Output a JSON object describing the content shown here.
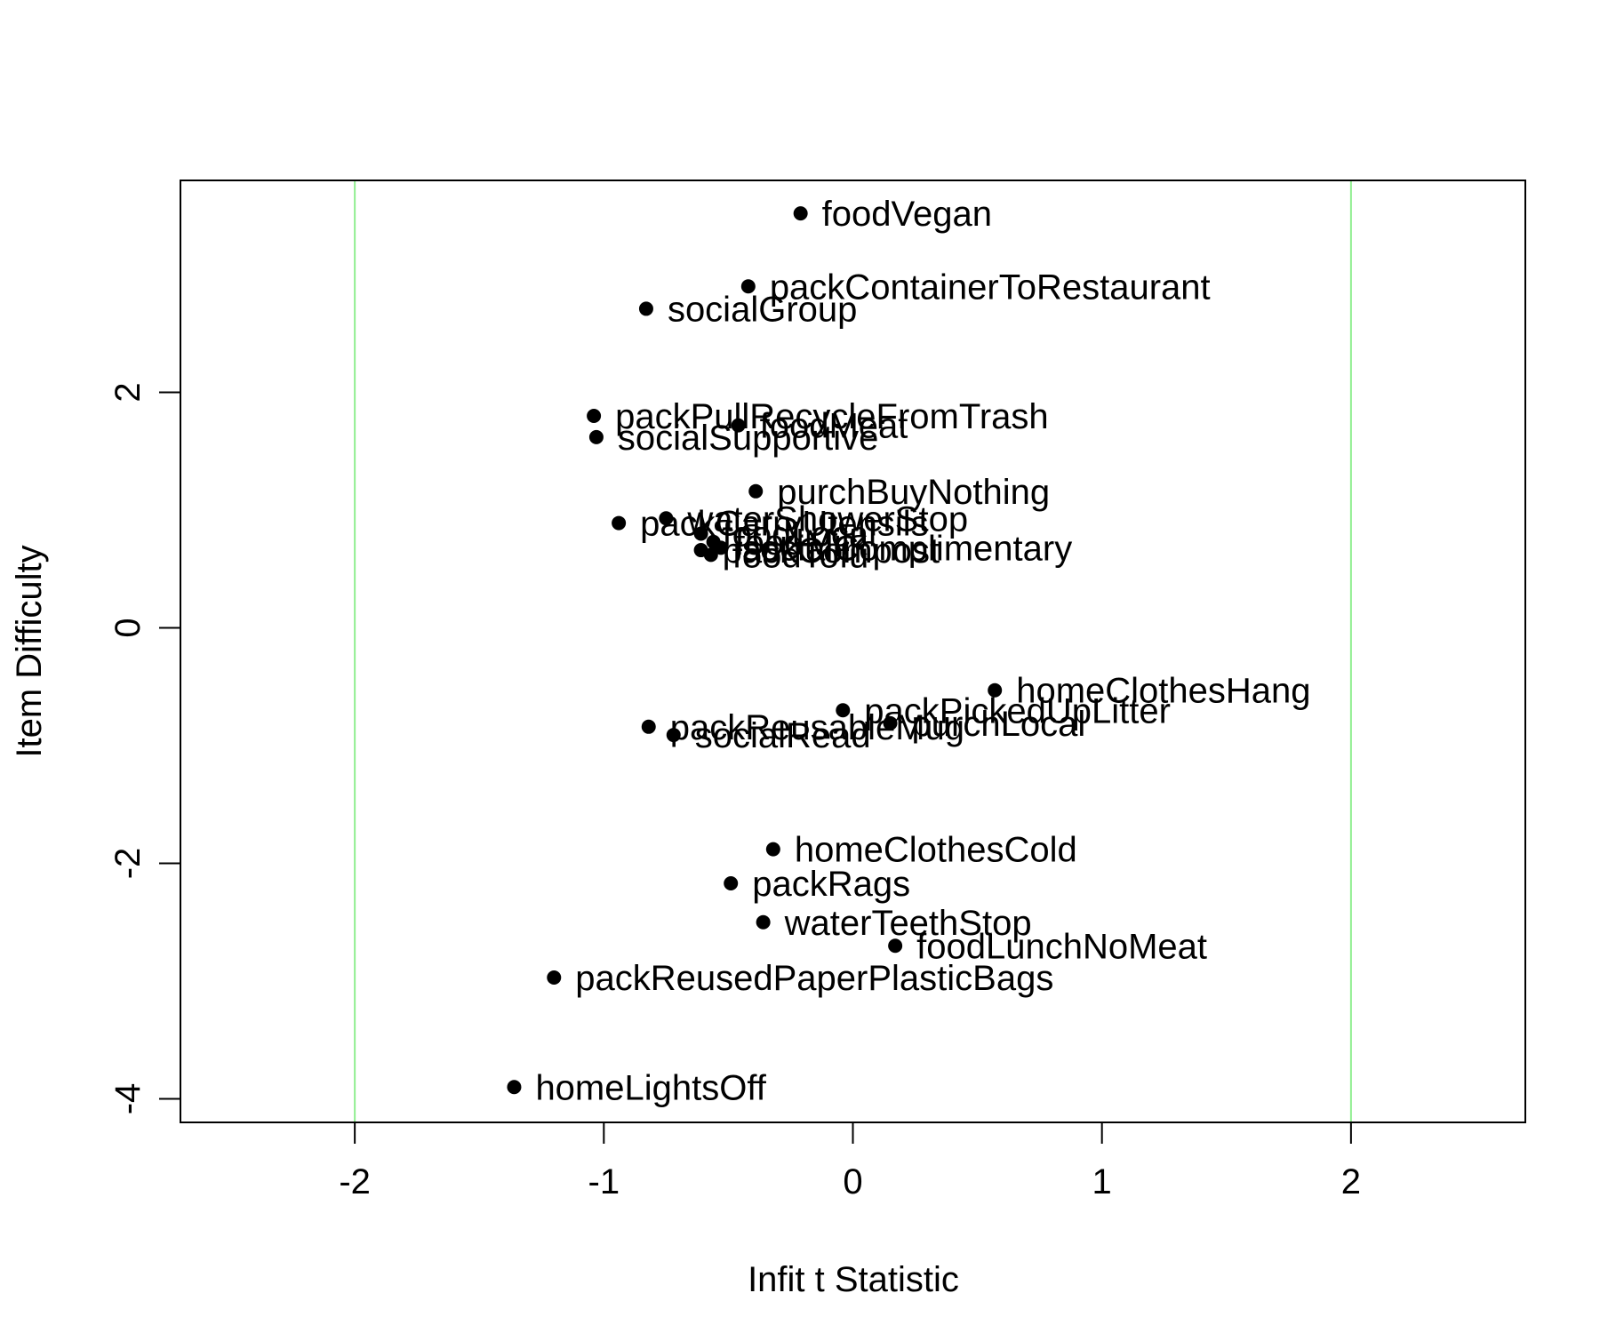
{
  "chart_data": {
    "type": "scatter",
    "xlabel": "Infit t Statistic",
    "ylabel": "Item Difficulty",
    "xlim": [
      -2.7,
      2.7
    ],
    "ylim": [
      -4.2,
      3.8
    ],
    "xticks": [
      -2,
      -1,
      0,
      1,
      2
    ],
    "yticks": [
      -4,
      -2,
      0,
      2
    ],
    "reference_lines_x": [
      -2,
      2
    ],
    "reference_line_color": "#90ee90",
    "point_color": "#000000",
    "points": [
      {
        "label": "foodVegan",
        "x": -0.21,
        "y": 3.52
      },
      {
        "label": "packContainerToRestaurant",
        "x": -0.42,
        "y": 2.9
      },
      {
        "label": "socialGroup",
        "x": -0.83,
        "y": 2.71
      },
      {
        "label": "packPullRecycleFromTrash",
        "x": -1.04,
        "y": 1.8
      },
      {
        "label": "foodMeat",
        "x": -0.46,
        "y": 1.72
      },
      {
        "label": "socialSupportive",
        "x": -1.03,
        "y": 1.62
      },
      {
        "label": "purchBuyNothing",
        "x": -0.39,
        "y": 1.16
      },
      {
        "label": "waterShowerStop",
        "x": -0.75,
        "y": 0.93
      },
      {
        "label": "packCarryUtensils",
        "x": -0.94,
        "y": 0.89
      },
      {
        "label": "foodLocal",
        "x": -0.61,
        "y": 0.8
      },
      {
        "label": "foodMilk",
        "x": -0.56,
        "y": 0.73
      },
      {
        "label": "socialComplimentary",
        "x": -0.53,
        "y": 0.68
      },
      {
        "label": "packCompost",
        "x": -0.61,
        "y": 0.66
      },
      {
        "label": "foodTofu",
        "x": -0.57,
        "y": 0.62
      },
      {
        "label": "homeClothesHang",
        "x": 0.57,
        "y": -0.53
      },
      {
        "label": "packPickedUpLitter",
        "x": -0.04,
        "y": -0.7
      },
      {
        "label": "purchLocal",
        "x": 0.15,
        "y": -0.81
      },
      {
        "label": "packReusableMug",
        "x": -0.82,
        "y": -0.84
      },
      {
        "label": "socialRead",
        "x": -0.72,
        "y": -0.91
      },
      {
        "label": "homeClothesCold",
        "x": -0.32,
        "y": -1.88
      },
      {
        "label": "packRags",
        "x": -0.49,
        "y": -2.17
      },
      {
        "label": "waterTeethStop",
        "x": -0.36,
        "y": -2.5
      },
      {
        "label": "foodLunchNoMeat",
        "x": 0.17,
        "y": -2.7
      },
      {
        "label": "packReusedPaperPlasticBags",
        "x": -1.2,
        "y": -2.97
      },
      {
        "label": "homeLightsOff",
        "x": -1.36,
        "y": -3.9
      }
    ]
  }
}
